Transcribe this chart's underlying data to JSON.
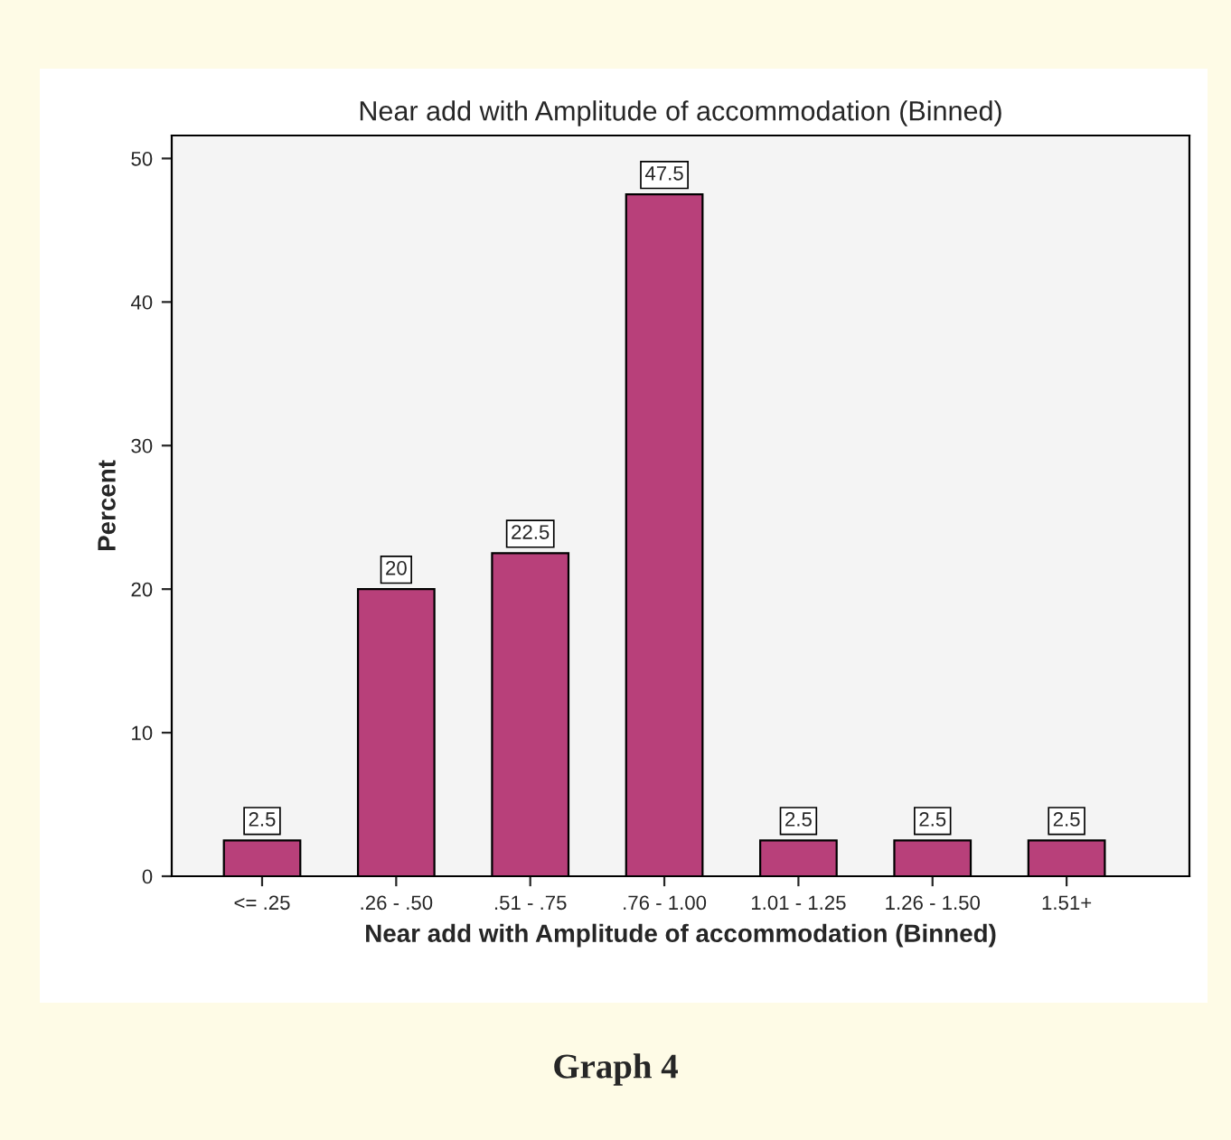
{
  "chart_data": {
    "type": "bar",
    "title": "Near add with Amplitude of accommodation (Binned)",
    "xlabel": "Near add with Amplitude of accommodation (Binned)",
    "ylabel": "Percent",
    "categories": [
      "<= .25",
      ".26 - .50",
      ".51 - .75",
      ".76 - 1.00",
      "1.01 - 1.25",
      "1.26 - 1.50",
      "1.51+"
    ],
    "values": [
      2.5,
      20,
      22.5,
      47.5,
      2.5,
      2.5,
      2.5
    ],
    "color": "#b8407a",
    "ylim": [
      0,
      51.6
    ],
    "yticks": [
      0,
      10,
      20,
      30,
      40,
      50
    ],
    "data_labels": true,
    "grid": false,
    "legend": false,
    "annotations": [
      "Graph 4"
    ]
  }
}
